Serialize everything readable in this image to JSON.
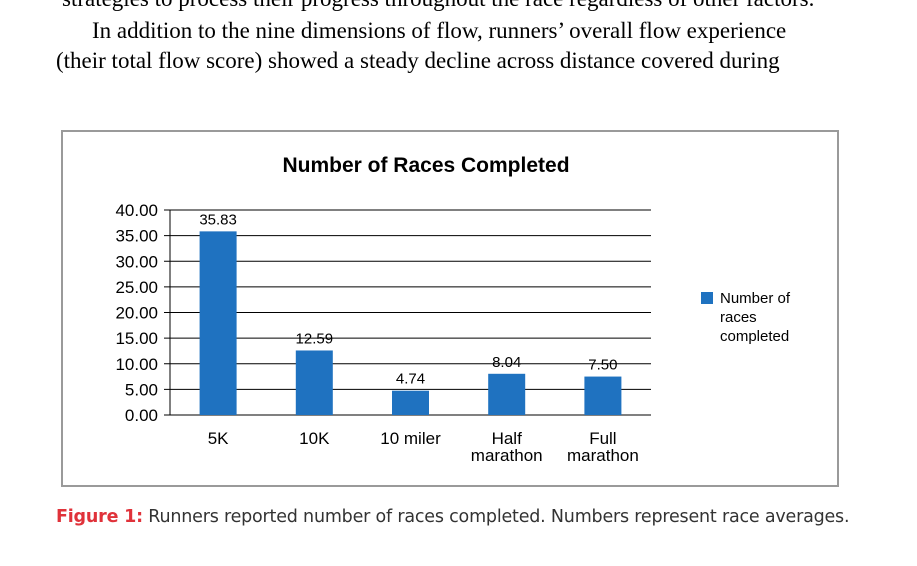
{
  "body": {
    "line_top": "strategies to process their progress throughout the race regardless of other factors.",
    "line_1": "In addition to the nine dimensions of flow, runners’ overall flow experience",
    "line_2": "(their total flow score) showed a steady decline across distance covered during"
  },
  "figure": {
    "caption_label": "Figure 1:",
    "caption_text": "Runners reported number of races completed. Numbers represent race averages."
  },
  "chart_data": {
    "type": "bar",
    "title": "Number of Races Completed",
    "categories": [
      [
        "5K"
      ],
      [
        "10K"
      ],
      [
        "10 miler"
      ],
      [
        "Half",
        "marathon"
      ],
      [
        "Full",
        "marathon"
      ]
    ],
    "series": [
      {
        "name": "Number of races completed",
        "legend_lines": [
          "Number of",
          "races",
          "completed"
        ],
        "values": [
          35.83,
          12.59,
          4.74,
          8.04,
          7.5
        ],
        "labels": [
          "35.83",
          "12.59",
          "4.74",
          "8.04",
          "7.50"
        ],
        "color": "#1f72c0"
      }
    ],
    "yticks": [
      "0.00",
      "5.00",
      "10.00",
      "15.00",
      "20.00",
      "25.00",
      "30.00",
      "35.00",
      "40.00"
    ],
    "ylim": [
      0,
      40
    ],
    "grid": true,
    "legend_position": "right",
    "xlabel": "",
    "ylabel": ""
  }
}
